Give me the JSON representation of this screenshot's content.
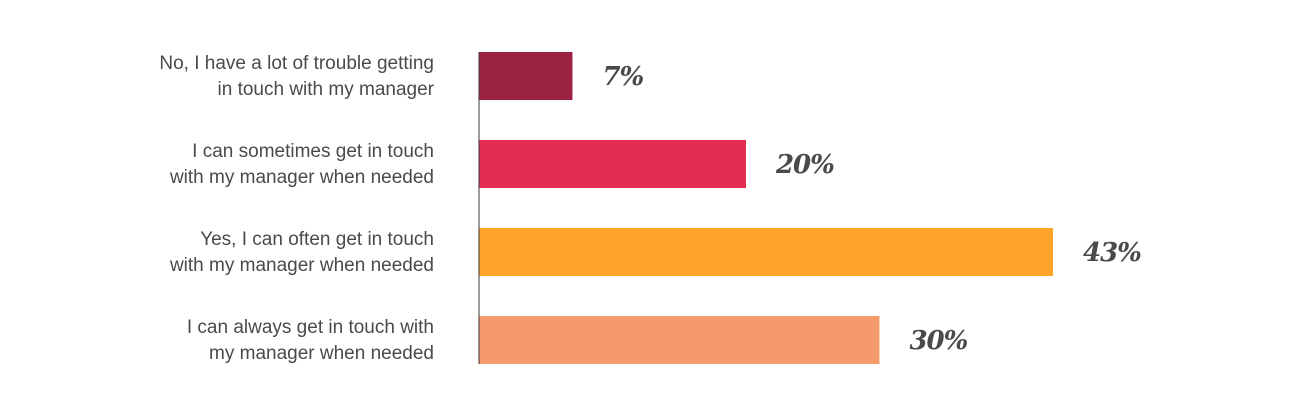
{
  "chart_data": {
    "type": "bar",
    "orientation": "horizontal",
    "categories": [
      [
        "No, I have a lot of trouble getting",
        "in touch with my manager"
      ],
      [
        "I can sometimes get in touch",
        "with my manager when needed"
      ],
      [
        "Yes, I can often get in touch",
        "with my manager when needed"
      ],
      [
        "I can always get in touch with",
        "my manager when needed"
      ]
    ],
    "values": [
      7,
      20,
      43,
      30
    ],
    "value_labels": [
      "7%",
      "20%",
      "43%",
      "30%"
    ],
    "colors": [
      "#9b2242",
      "#e32e51",
      "#ffa32b",
      "#f59a6b"
    ],
    "xlim": [
      0,
      43
    ],
    "axis_color": "#3a3a3a",
    "title": "",
    "xlabel": "",
    "ylabel": "",
    "grid": false,
    "legend": "none"
  }
}
